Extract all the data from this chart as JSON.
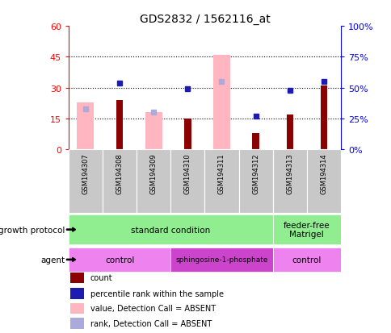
{
  "title": "GDS2832 / 1562116_at",
  "samples": [
    "GSM194307",
    "GSM194308",
    "GSM194309",
    "GSM194310",
    "GSM194311",
    "GSM194312",
    "GSM194313",
    "GSM194314"
  ],
  "count_values": [
    null,
    24,
    null,
    15,
    null,
    8,
    17,
    31
  ],
  "percentile_rank": [
    null,
    54,
    null,
    49,
    null,
    27,
    48,
    55
  ],
  "absent_value": [
    23,
    null,
    18,
    null,
    46,
    null,
    null,
    null
  ],
  "absent_rank": [
    33,
    null,
    30,
    null,
    55,
    null,
    null,
    null
  ],
  "ylim_left": [
    0,
    60
  ],
  "ylim_right": [
    0,
    100
  ],
  "yticks_left": [
    0,
    15,
    30,
    45,
    60
  ],
  "yticks_right": [
    0,
    25,
    50,
    75,
    100
  ],
  "ytick_labels_right": [
    "0%",
    "25%",
    "50%",
    "75%",
    "100%"
  ],
  "hline_values": [
    15,
    30,
    45
  ],
  "bar_color_count": "#8B0000",
  "bar_color_absent_value": "#FFB6C1",
  "dot_color_rank": "#1C1CB0",
  "dot_color_absent_rank": "#AAAADD",
  "gp_color": "#90EE90",
  "agent_color_control": "#EE82EE",
  "agent_color_sphingo": "#CC44CC",
  "sample_box_color": "#C8C8C8",
  "legend_items": [
    {
      "color": "#8B0000",
      "label": "count"
    },
    {
      "color": "#1C1CB0",
      "label": "percentile rank within the sample"
    },
    {
      "color": "#FFB6C1",
      "label": "value, Detection Call = ABSENT"
    },
    {
      "color": "#AAAADD",
      "label": "rank, Detection Call = ABSENT"
    }
  ]
}
